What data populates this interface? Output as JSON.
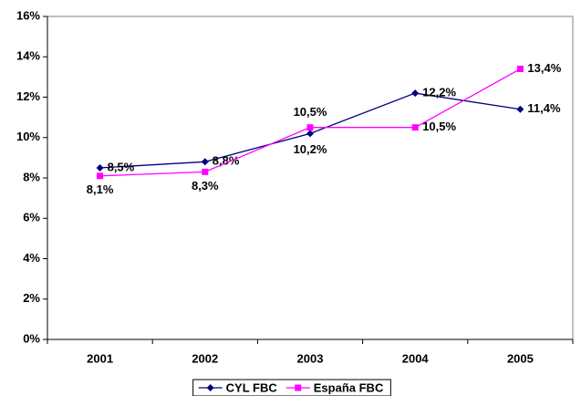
{
  "chart_data": {
    "type": "line",
    "categories": [
      "2001",
      "2002",
      "2003",
      "2004",
      "2005"
    ],
    "series": [
      {
        "name": "CYL FBC",
        "color": "#000080",
        "marker": "diamond",
        "values": [
          8.5,
          8.8,
          10.2,
          12.2,
          11.4
        ],
        "value_labels": [
          "8,5%",
          "8,8%",
          "10,2%",
          "12,2%",
          "11,4%"
        ]
      },
      {
        "name": "España FBC",
        "color": "#ff00ff",
        "marker": "square",
        "values": [
          8.1,
          8.3,
          10.5,
          10.5,
          13.4
        ],
        "value_labels": [
          "8,1%",
          "8,3%",
          "10,5%",
          "10,5%",
          "13,4%"
        ]
      }
    ],
    "ylim": [
      0,
      16
    ],
    "yticks": [
      {
        "value": 0,
        "label": "0%"
      },
      {
        "value": 2,
        "label": "2%"
      },
      {
        "value": 4,
        "label": "4%"
      },
      {
        "value": 6,
        "label": "6%"
      },
      {
        "value": 8,
        "label": "8%"
      },
      {
        "value": 10,
        "label": "10%"
      },
      {
        "value": 12,
        "label": "12%"
      },
      {
        "value": 14,
        "label": "14%"
      },
      {
        "value": 16,
        "label": "16%"
      }
    ],
    "grid": false,
    "legend": "bottom"
  }
}
